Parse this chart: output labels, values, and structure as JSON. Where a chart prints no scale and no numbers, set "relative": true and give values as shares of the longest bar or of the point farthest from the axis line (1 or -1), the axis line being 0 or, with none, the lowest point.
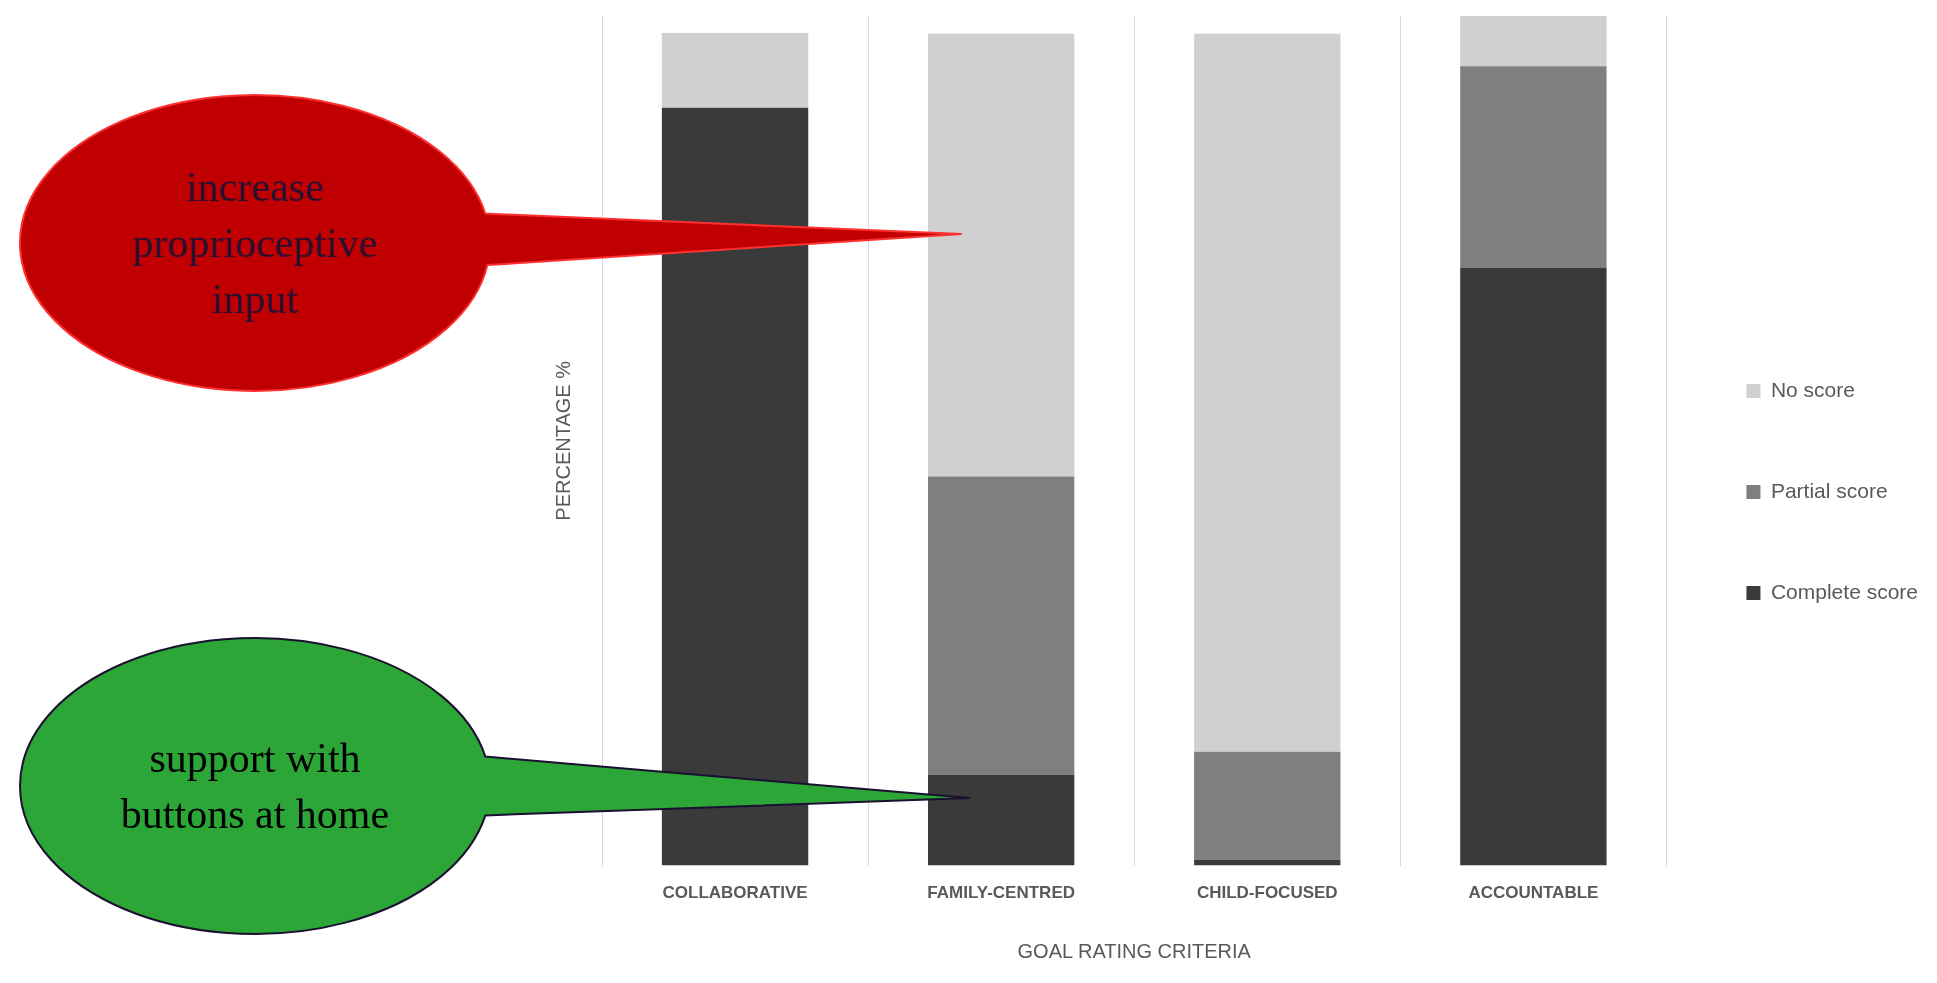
{
  "chart_data": {
    "type": "bar",
    "stacked": true,
    "relative": true,
    "xlabel": "GOAL RATING CRITERIA",
    "ylabel": "PERCENTAGE %",
    "categories": [
      "COLLABORATIVE",
      "FAMILY-CENTRED",
      "CHILD-FOCUSED",
      "ACCOUNTABLE"
    ],
    "series": [
      {
        "name": "Complete score",
        "color": "#3a3a3a",
        "values": [
          0.892,
          0.107,
          0.007,
          0.704
        ]
      },
      {
        "name": "Partial score",
        "color": "#7f7f7f",
        "values": [
          0,
          0.351,
          0.127,
          0.237
        ]
      },
      {
        "name": "No score",
        "color": "#d0d0d0",
        "values": [
          0.088,
          0.521,
          0.845,
          0.059
        ]
      }
    ],
    "grid": "x",
    "legend": "right",
    "annotations": [
      "increase proprioceptive input",
      "support with buttons at home"
    ]
  }
}
